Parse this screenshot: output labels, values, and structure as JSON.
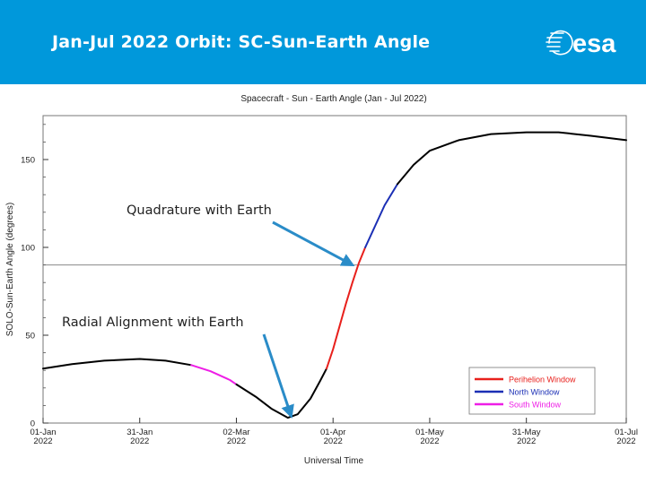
{
  "slide": {
    "title": "Jan-Jul 2022 Orbit: SC-Sun-Earth Angle",
    "logo_text": "esa"
  },
  "colors": {
    "banner": "#0098db",
    "perihelion": "#e8201c",
    "north": "#1b2fb5",
    "south": "#ee1ee6",
    "base": "#000000",
    "annotation_arrow": "#2a8cc8"
  },
  "chart_data": {
    "type": "line",
    "title": "Spacecraft - Sun - Earth Angle (Jan - Jul 2022)",
    "xlabel": "Universal Time",
    "ylabel": "SOLO-Sun-Earth Angle (degrees)",
    "xlim": [
      "2022-01-01",
      "2022-07-01"
    ],
    "ylim": [
      0,
      175
    ],
    "x_ticks": [
      {
        "date": "2022-01-01",
        "line1": "01-Jan",
        "line2": "2022"
      },
      {
        "date": "2022-01-31",
        "line1": "31-Jan",
        "line2": "2022"
      },
      {
        "date": "2022-03-02",
        "line1": "02-Mar",
        "line2": "2022"
      },
      {
        "date": "2022-04-01",
        "line1": "01-Apr",
        "line2": "2022"
      },
      {
        "date": "2022-05-01",
        "line1": "01-May",
        "line2": "2022"
      },
      {
        "date": "2022-05-31",
        "line1": "31-May",
        "line2": "2022"
      },
      {
        "date": "2022-07-01",
        "line1": "01-Jul",
        "line2": "2022"
      }
    ],
    "y_ticks": [
      0,
      50,
      100,
      150
    ],
    "reference_line": {
      "y": 90
    },
    "series": [
      {
        "name": "",
        "key": "base",
        "points": [
          [
            "2022-01-01",
            31
          ],
          [
            "2022-01-10",
            33.5
          ],
          [
            "2022-01-20",
            35.5
          ],
          [
            "2022-01-31",
            36.5
          ],
          [
            "2022-02-08",
            35.5
          ],
          [
            "2022-02-16",
            33
          ]
        ]
      },
      {
        "name": "South Window",
        "key": "south",
        "points": [
          [
            "2022-02-16",
            33
          ],
          [
            "2022-02-22",
            29.5
          ],
          [
            "2022-02-28",
            24.5
          ],
          [
            "2022-03-02",
            22
          ]
        ]
      },
      {
        "name": "",
        "key": "base",
        "points": [
          [
            "2022-03-02",
            22
          ],
          [
            "2022-03-08",
            15
          ],
          [
            "2022-03-13",
            8
          ],
          [
            "2022-03-18",
            3
          ],
          [
            "2022-03-21",
            5
          ],
          [
            "2022-03-25",
            14
          ],
          [
            "2022-03-28",
            24
          ],
          [
            "2022-03-30",
            31
          ]
        ]
      },
      {
        "name": "Perihelion Window",
        "key": "perihelion",
        "points": [
          [
            "2022-03-30",
            31
          ],
          [
            "2022-04-01",
            42
          ],
          [
            "2022-04-03",
            55
          ],
          [
            "2022-04-05",
            68
          ],
          [
            "2022-04-07",
            80
          ],
          [
            "2022-04-09",
            91
          ],
          [
            "2022-04-11",
            100
          ]
        ]
      },
      {
        "name": "North Window",
        "key": "north",
        "points": [
          [
            "2022-04-11",
            100
          ],
          [
            "2022-04-14",
            112
          ],
          [
            "2022-04-17",
            124
          ],
          [
            "2022-04-21",
            136
          ]
        ]
      },
      {
        "name": "",
        "key": "base",
        "points": [
          [
            "2022-04-21",
            136
          ],
          [
            "2022-04-26",
            147
          ],
          [
            "2022-05-01",
            155
          ],
          [
            "2022-05-10",
            161
          ],
          [
            "2022-05-20",
            164.5
          ],
          [
            "2022-05-31",
            165.5
          ],
          [
            "2022-06-10",
            165.5
          ],
          [
            "2022-06-20",
            163.5
          ],
          [
            "2022-07-01",
            161
          ]
        ]
      }
    ],
    "legend": {
      "position": "bottom-right",
      "entries": [
        {
          "label": "Perihelion Window",
          "key": "perihelion"
        },
        {
          "label": "North Window",
          "key": "north"
        },
        {
          "label": "South Window",
          "key": "south"
        }
      ]
    },
    "annotations": [
      {
        "text": "Quadrature with Earth",
        "target": [
          "2022-04-07",
          90
        ]
      },
      {
        "text": "Radial Alignment with Earth",
        "target": [
          "2022-03-19",
          4
        ]
      }
    ],
    "grid": false
  }
}
